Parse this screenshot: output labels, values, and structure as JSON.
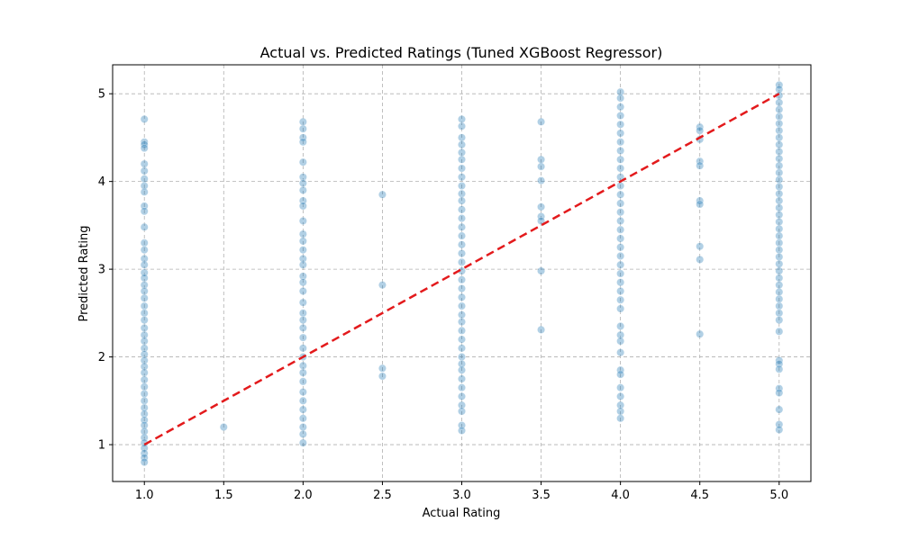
{
  "chart_data": {
    "type": "scatter",
    "title": "Actual vs. Predicted Ratings (Tuned XGBoost Regressor)",
    "xlabel": "Actual Rating",
    "ylabel": "Predicted Rating",
    "xlim": [
      0.8,
      5.2
    ],
    "ylim": [
      0.58,
      5.33
    ],
    "x_ticks": [
      1.0,
      1.5,
      2.0,
      2.5,
      3.0,
      3.5,
      4.0,
      4.5,
      5.0
    ],
    "x_tick_labels": [
      "1.0",
      "1.5",
      "2.0",
      "2.5",
      "3.0",
      "3.5",
      "4.0",
      "4.5",
      "5.0"
    ],
    "y_ticks": [
      1,
      2,
      3,
      4,
      5
    ],
    "y_tick_labels": [
      "1",
      "2",
      "3",
      "4",
      "5"
    ],
    "grid": true,
    "point_color": "#1f77b4",
    "point_alpha": 0.35,
    "reference_line": {
      "from": [
        1.0,
        1.0
      ],
      "to": [
        5.0,
        5.0
      ],
      "color": "#e31a1c",
      "style": "dashed"
    },
    "points": [
      [
        1.0,
        4.71
      ],
      [
        1.0,
        4.45
      ],
      [
        1.0,
        4.42
      ],
      [
        1.0,
        4.38
      ],
      [
        1.0,
        4.2
      ],
      [
        1.0,
        4.12
      ],
      [
        1.0,
        4.03
      ],
      [
        1.0,
        3.95
      ],
      [
        1.0,
        3.88
      ],
      [
        1.0,
        3.72
      ],
      [
        1.0,
        3.66
      ],
      [
        1.0,
        3.48
      ],
      [
        1.0,
        3.3
      ],
      [
        1.0,
        3.22
      ],
      [
        1.0,
        3.12
      ],
      [
        1.0,
        3.05
      ],
      [
        1.0,
        2.96
      ],
      [
        1.0,
        2.9
      ],
      [
        1.0,
        2.82
      ],
      [
        1.0,
        2.75
      ],
      [
        1.0,
        2.67
      ],
      [
        1.0,
        2.58
      ],
      [
        1.0,
        2.5
      ],
      [
        1.0,
        2.42
      ],
      [
        1.0,
        2.33
      ],
      [
        1.0,
        2.25
      ],
      [
        1.0,
        2.18
      ],
      [
        1.0,
        2.1
      ],
      [
        1.0,
        2.03
      ],
      [
        1.0,
        1.96
      ],
      [
        1.0,
        1.89
      ],
      [
        1.0,
        1.82
      ],
      [
        1.0,
        1.74
      ],
      [
        1.0,
        1.66
      ],
      [
        1.0,
        1.58
      ],
      [
        1.0,
        1.5
      ],
      [
        1.0,
        1.42
      ],
      [
        1.0,
        1.35
      ],
      [
        1.0,
        1.28
      ],
      [
        1.0,
        1.22
      ],
      [
        1.0,
        1.15
      ],
      [
        1.0,
        1.08
      ],
      [
        1.0,
        1.02
      ],
      [
        1.0,
        0.96
      ],
      [
        1.0,
        0.9
      ],
      [
        1.0,
        0.85
      ],
      [
        1.0,
        0.8
      ],
      [
        1.5,
        1.2
      ],
      [
        2.0,
        4.68
      ],
      [
        2.0,
        4.6
      ],
      [
        2.0,
        4.5
      ],
      [
        2.0,
        4.45
      ],
      [
        2.0,
        4.22
      ],
      [
        2.0,
        4.05
      ],
      [
        2.0,
        3.98
      ],
      [
        2.0,
        3.9
      ],
      [
        2.0,
        3.78
      ],
      [
        2.0,
        3.72
      ],
      [
        2.0,
        3.55
      ],
      [
        2.0,
        3.4
      ],
      [
        2.0,
        3.32
      ],
      [
        2.0,
        3.22
      ],
      [
        2.0,
        3.12
      ],
      [
        2.0,
        3.05
      ],
      [
        2.0,
        2.92
      ],
      [
        2.0,
        2.85
      ],
      [
        2.0,
        2.75
      ],
      [
        2.0,
        2.62
      ],
      [
        2.0,
        2.5
      ],
      [
        2.0,
        2.42
      ],
      [
        2.0,
        2.33
      ],
      [
        2.0,
        2.22
      ],
      [
        2.0,
        2.1
      ],
      [
        2.0,
        2.0
      ],
      [
        2.0,
        1.9
      ],
      [
        2.0,
        1.82
      ],
      [
        2.0,
        1.72
      ],
      [
        2.0,
        1.6
      ],
      [
        2.0,
        1.5
      ],
      [
        2.0,
        1.4
      ],
      [
        2.0,
        1.3
      ],
      [
        2.0,
        1.2
      ],
      [
        2.0,
        1.12
      ],
      [
        2.0,
        1.02
      ],
      [
        2.5,
        3.85
      ],
      [
        2.5,
        2.82
      ],
      [
        2.5,
        1.87
      ],
      [
        2.5,
        1.78
      ],
      [
        3.0,
        4.71
      ],
      [
        3.0,
        4.63
      ],
      [
        3.0,
        4.5
      ],
      [
        3.0,
        4.42
      ],
      [
        3.0,
        4.33
      ],
      [
        3.0,
        4.25
      ],
      [
        3.0,
        4.15
      ],
      [
        3.0,
        4.05
      ],
      [
        3.0,
        3.95
      ],
      [
        3.0,
        3.86
      ],
      [
        3.0,
        3.78
      ],
      [
        3.0,
        3.68
      ],
      [
        3.0,
        3.58
      ],
      [
        3.0,
        3.48
      ],
      [
        3.0,
        3.38
      ],
      [
        3.0,
        3.28
      ],
      [
        3.0,
        3.18
      ],
      [
        3.0,
        3.08
      ],
      [
        3.0,
        2.98
      ],
      [
        3.0,
        2.88
      ],
      [
        3.0,
        2.78
      ],
      [
        3.0,
        2.68
      ],
      [
        3.0,
        2.58
      ],
      [
        3.0,
        2.48
      ],
      [
        3.0,
        2.4
      ],
      [
        3.0,
        2.3
      ],
      [
        3.0,
        2.2
      ],
      [
        3.0,
        2.1
      ],
      [
        3.0,
        2.0
      ],
      [
        3.0,
        1.92
      ],
      [
        3.0,
        1.85
      ],
      [
        3.0,
        1.75
      ],
      [
        3.0,
        1.65
      ],
      [
        3.0,
        1.55
      ],
      [
        3.0,
        1.45
      ],
      [
        3.0,
        1.38
      ],
      [
        3.0,
        1.22
      ],
      [
        3.0,
        1.16
      ],
      [
        3.5,
        4.68
      ],
      [
        3.5,
        4.25
      ],
      [
        3.5,
        4.17
      ],
      [
        3.5,
        4.01
      ],
      [
        3.5,
        3.71
      ],
      [
        3.5,
        3.6
      ],
      [
        3.5,
        3.55
      ],
      [
        3.5,
        2.98
      ],
      [
        3.5,
        2.31
      ],
      [
        4.0,
        5.02
      ],
      [
        4.0,
        4.95
      ],
      [
        4.0,
        4.85
      ],
      [
        4.0,
        4.75
      ],
      [
        4.0,
        4.65
      ],
      [
        4.0,
        4.55
      ],
      [
        4.0,
        4.45
      ],
      [
        4.0,
        4.35
      ],
      [
        4.0,
        4.25
      ],
      [
        4.0,
        4.15
      ],
      [
        4.0,
        4.05
      ],
      [
        4.0,
        3.95
      ],
      [
        4.0,
        3.85
      ],
      [
        4.0,
        3.75
      ],
      [
        4.0,
        3.65
      ],
      [
        4.0,
        3.55
      ],
      [
        4.0,
        3.45
      ],
      [
        4.0,
        3.35
      ],
      [
        4.0,
        3.25
      ],
      [
        4.0,
        3.15
      ],
      [
        4.0,
        3.05
      ],
      [
        4.0,
        2.95
      ],
      [
        4.0,
        2.85
      ],
      [
        4.0,
        2.75
      ],
      [
        4.0,
        2.65
      ],
      [
        4.0,
        2.55
      ],
      [
        4.0,
        2.35
      ],
      [
        4.0,
        2.25
      ],
      [
        4.0,
        2.18
      ],
      [
        4.0,
        2.05
      ],
      [
        4.0,
        1.85
      ],
      [
        4.0,
        1.8
      ],
      [
        4.0,
        1.65
      ],
      [
        4.0,
        1.55
      ],
      [
        4.0,
        1.45
      ],
      [
        4.0,
        1.38
      ],
      [
        4.0,
        1.3
      ],
      [
        4.5,
        4.62
      ],
      [
        4.5,
        4.58
      ],
      [
        4.5,
        4.48
      ],
      [
        4.5,
        4.23
      ],
      [
        4.5,
        4.18
      ],
      [
        4.5,
        3.78
      ],
      [
        4.5,
        3.74
      ],
      [
        4.5,
        3.26
      ],
      [
        4.5,
        3.11
      ],
      [
        4.5,
        2.26
      ],
      [
        5.0,
        5.1
      ],
      [
        5.0,
        5.05
      ],
      [
        5.0,
        4.98
      ],
      [
        5.0,
        4.9
      ],
      [
        5.0,
        4.82
      ],
      [
        5.0,
        4.74
      ],
      [
        5.0,
        4.66
      ],
      [
        5.0,
        4.58
      ],
      [
        5.0,
        4.5
      ],
      [
        5.0,
        4.42
      ],
      [
        5.0,
        4.34
      ],
      [
        5.0,
        4.26
      ],
      [
        5.0,
        4.18
      ],
      [
        5.0,
        4.1
      ],
      [
        5.0,
        4.02
      ],
      [
        5.0,
        3.94
      ],
      [
        5.0,
        3.86
      ],
      [
        5.0,
        3.78
      ],
      [
        5.0,
        3.7
      ],
      [
        5.0,
        3.62
      ],
      [
        5.0,
        3.54
      ],
      [
        5.0,
        3.46
      ],
      [
        5.0,
        3.38
      ],
      [
        5.0,
        3.3
      ],
      [
        5.0,
        3.22
      ],
      [
        5.0,
        3.14
      ],
      [
        5.0,
        3.06
      ],
      [
        5.0,
        2.98
      ],
      [
        5.0,
        2.9
      ],
      [
        5.0,
        2.82
      ],
      [
        5.0,
        2.74
      ],
      [
        5.0,
        2.66
      ],
      [
        5.0,
        2.58
      ],
      [
        5.0,
        2.5
      ],
      [
        5.0,
        2.42
      ],
      [
        5.0,
        2.29
      ],
      [
        5.0,
        1.96
      ],
      [
        5.0,
        1.92
      ],
      [
        5.0,
        1.86
      ],
      [
        5.0,
        1.64
      ],
      [
        5.0,
        1.59
      ],
      [
        5.0,
        1.4
      ],
      [
        5.0,
        1.23
      ],
      [
        5.0,
        1.17
      ]
    ]
  }
}
